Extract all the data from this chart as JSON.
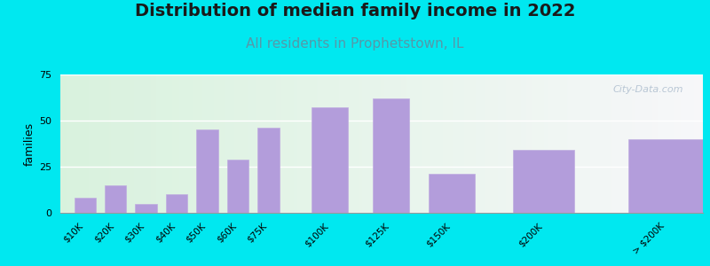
{
  "title": "Distribution of median family income in 2022",
  "subtitle": "All residents in Prophetstown, IL",
  "ylabel": "families",
  "categories": [
    "$10K",
    "$20K",
    "$30K",
    "$40K",
    "$50K",
    "$60K",
    "$75K",
    "$100K",
    "$125K",
    "$150K",
    "$200K",
    "> $200K"
  ],
  "values": [
    8,
    15,
    5,
    10,
    45,
    29,
    46,
    57,
    62,
    21,
    34,
    40
  ],
  "bar_color": "#b39ddb",
  "bar_edge_color": "#c0aee0",
  "ylim": [
    0,
    75
  ],
  "yticks": [
    0,
    25,
    50,
    75
  ],
  "background_outer": "#00e8f0",
  "title_fontsize": 14,
  "subtitle_fontsize": 11,
  "subtitle_color": "#5599aa",
  "ylabel_fontsize": 9,
  "watermark_text": "City-Data.com",
  "watermark_color": "#aabbcc",
  "plot_bg_left_color": "#d4edda",
  "plot_bg_right_color": "#f8f8f8",
  "grid_color": "#ffffff",
  "spine_color": "#999999",
  "tick_fontsize": 7.5,
  "bar_positions": [
    0,
    1,
    2,
    3,
    4,
    5,
    6,
    8,
    10,
    12,
    15,
    19
  ]
}
